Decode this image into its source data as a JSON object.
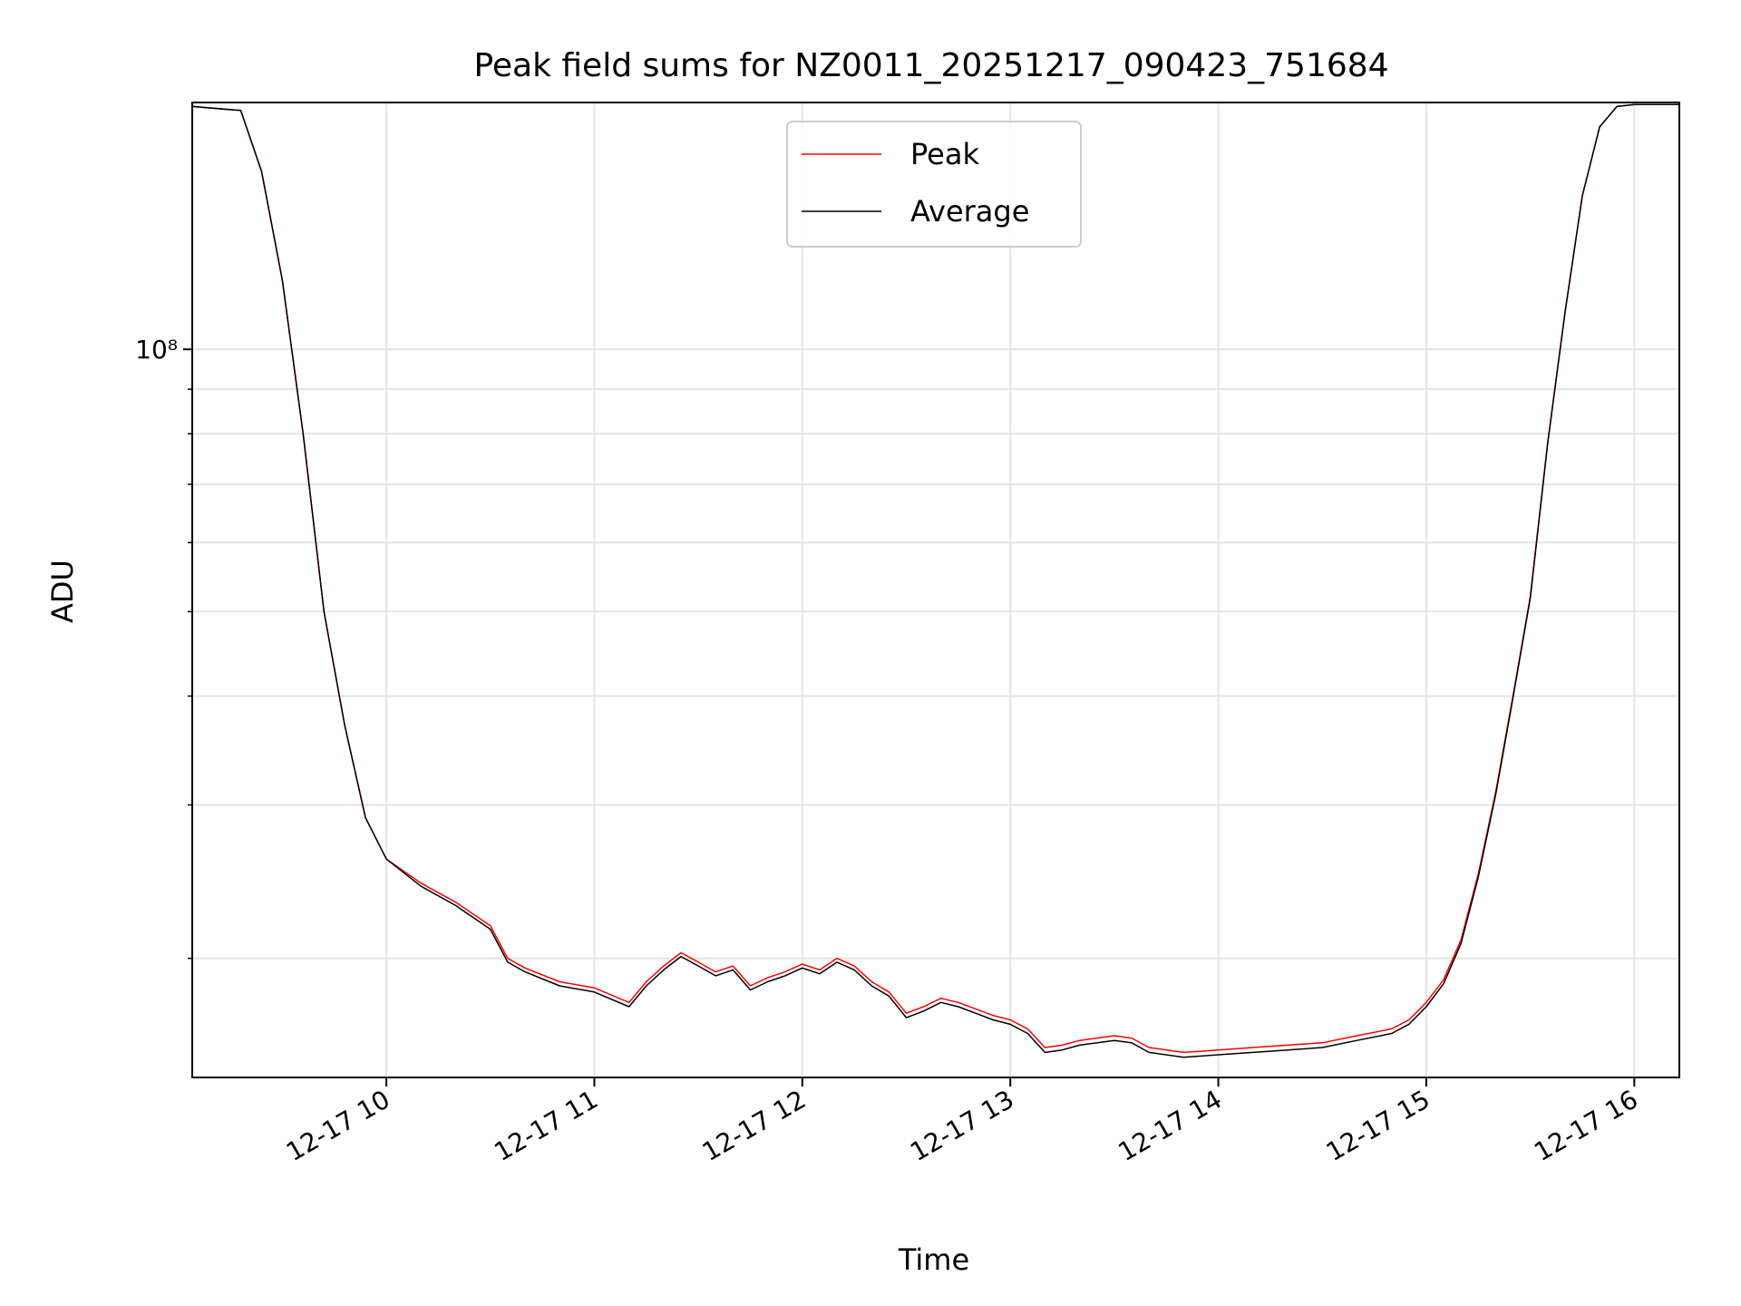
{
  "chart_data": {
    "type": "line",
    "title": "Peak field sums for NZ0011_20251217_090423_751684",
    "xlabel": "Time",
    "ylabel": "ADU",
    "y_scale": "log",
    "ylim": [
      14600000,
      192000000
    ],
    "xlim": [
      "2025-12-17 09:04",
      "2025-12-17 16:13"
    ],
    "x_tick_labels": [
      "12-17 10",
      "12-17 11",
      "12-17 12",
      "12-17 13",
      "12-17 14",
      "12-17 15",
      "12-17 16"
    ],
    "x_ticks": [
      "2025-12-17 10:00",
      "2025-12-17 11:00",
      "2025-12-17 12:00",
      "2025-12-17 13:00",
      "2025-12-17 14:00",
      "2025-12-17 15:00",
      "2025-12-17 16:00"
    ],
    "y_major_tick_label": "10⁸",
    "y_major_ticks": [
      100000000
    ],
    "y_minor_ticks": [
      20000000,
      30000000,
      40000000,
      50000000,
      60000000,
      70000000,
      80000000,
      90000000,
      200000000
    ],
    "grid": true,
    "legend_position": "top-center",
    "series": [
      {
        "name": "Peak",
        "color": "#ff0000",
        "x": [
          "2025-12-17 09:04",
          "2025-12-17 09:18",
          "2025-12-17 09:24",
          "2025-12-17 09:30",
          "2025-12-17 09:36",
          "2025-12-17 09:42",
          "2025-12-17 09:48",
          "2025-12-17 09:54",
          "2025-12-17 10:00",
          "2025-12-17 10:10",
          "2025-12-17 10:20",
          "2025-12-17 10:30",
          "2025-12-17 10:35",
          "2025-12-17 10:40",
          "2025-12-17 10:50",
          "2025-12-17 11:00",
          "2025-12-17 11:10",
          "2025-12-17 11:15",
          "2025-12-17 11:20",
          "2025-12-17 11:25",
          "2025-12-17 11:30",
          "2025-12-17 11:35",
          "2025-12-17 11:40",
          "2025-12-17 11:45",
          "2025-12-17 11:50",
          "2025-12-17 11:55",
          "2025-12-17 12:00",
          "2025-12-17 12:05",
          "2025-12-17 12:10",
          "2025-12-17 12:15",
          "2025-12-17 12:20",
          "2025-12-17 12:25",
          "2025-12-17 12:30",
          "2025-12-17 12:35",
          "2025-12-17 12:40",
          "2025-12-17 12:45",
          "2025-12-17 12:50",
          "2025-12-17 12:55",
          "2025-12-17 13:00",
          "2025-12-17 13:05",
          "2025-12-17 13:10",
          "2025-12-17 13:15",
          "2025-12-17 13:20",
          "2025-12-17 13:30",
          "2025-12-17 13:35",
          "2025-12-17 13:40",
          "2025-12-17 13:50",
          "2025-12-17 14:00",
          "2025-12-17 14:10",
          "2025-12-17 14:20",
          "2025-12-17 14:30",
          "2025-12-17 14:40",
          "2025-12-17 14:50",
          "2025-12-17 14:55",
          "2025-12-17 15:00",
          "2025-12-17 15:05",
          "2025-12-17 15:10",
          "2025-12-17 15:15",
          "2025-12-17 15:20",
          "2025-12-17 15:25",
          "2025-12-17 15:30",
          "2025-12-17 15:35",
          "2025-12-17 15:40",
          "2025-12-17 15:45",
          "2025-12-17 15:50",
          "2025-12-17 15:55",
          "2025-12-17 16:00",
          "2025-12-17 16:05",
          "2025-12-17 16:13"
        ],
        "values": [
          190000000,
          188000000,
          160000000,
          120000000,
          80000000,
          50000000,
          37000000,
          29000000,
          26000000,
          24400000,
          23200000,
          21800000,
          20000000,
          19500000,
          18800000,
          18500000,
          17800000,
          18800000,
          19600000,
          20300000,
          19800000,
          19300000,
          19600000,
          18600000,
          19000000,
          19300000,
          19700000,
          19400000,
          20000000,
          19600000,
          18800000,
          18300000,
          17300000,
          17600000,
          18000000,
          17800000,
          17500000,
          17200000,
          17000000,
          16600000,
          15800000,
          15900000,
          16100000,
          16300000,
          16200000,
          15800000,
          15600000,
          15700000,
          15800000,
          15900000,
          16000000,
          16300000,
          16600000,
          17000000,
          17800000,
          18900000,
          21000000,
          25000000,
          31000000,
          40000000,
          52000000,
          78000000,
          110000000,
          150000000,
          180000000,
          190000000,
          191000000,
          191000000,
          191000000
        ]
      },
      {
        "name": "Average",
        "color": "#000000",
        "x": [
          "2025-12-17 09:04",
          "2025-12-17 09:18",
          "2025-12-17 09:24",
          "2025-12-17 09:30",
          "2025-12-17 09:36",
          "2025-12-17 09:42",
          "2025-12-17 09:48",
          "2025-12-17 09:54",
          "2025-12-17 10:00",
          "2025-12-17 10:10",
          "2025-12-17 10:20",
          "2025-12-17 10:30",
          "2025-12-17 10:35",
          "2025-12-17 10:40",
          "2025-12-17 10:50",
          "2025-12-17 11:00",
          "2025-12-17 11:10",
          "2025-12-17 11:15",
          "2025-12-17 11:20",
          "2025-12-17 11:25",
          "2025-12-17 11:30",
          "2025-12-17 11:35",
          "2025-12-17 11:40",
          "2025-12-17 11:45",
          "2025-12-17 11:50",
          "2025-12-17 11:55",
          "2025-12-17 12:00",
          "2025-12-17 12:05",
          "2025-12-17 12:10",
          "2025-12-17 12:15",
          "2025-12-17 12:20",
          "2025-12-17 12:25",
          "2025-12-17 12:30",
          "2025-12-17 12:35",
          "2025-12-17 12:40",
          "2025-12-17 12:45",
          "2025-12-17 12:50",
          "2025-12-17 12:55",
          "2025-12-17 13:00",
          "2025-12-17 13:05",
          "2025-12-17 13:10",
          "2025-12-17 13:15",
          "2025-12-17 13:20",
          "2025-12-17 13:30",
          "2025-12-17 13:35",
          "2025-12-17 13:40",
          "2025-12-17 13:50",
          "2025-12-17 14:00",
          "2025-12-17 14:10",
          "2025-12-17 14:20",
          "2025-12-17 14:30",
          "2025-12-17 14:40",
          "2025-12-17 14:50",
          "2025-12-17 14:55",
          "2025-12-17 15:00",
          "2025-12-17 15:05",
          "2025-12-17 15:10",
          "2025-12-17 15:15",
          "2025-12-17 15:20",
          "2025-12-17 15:25",
          "2025-12-17 15:30",
          "2025-12-17 15:35",
          "2025-12-17 15:40",
          "2025-12-17 15:45",
          "2025-12-17 15:50",
          "2025-12-17 15:55",
          "2025-12-17 16:00",
          "2025-12-17 16:05",
          "2025-12-17 16:13"
        ],
        "values": [
          190000000,
          188000000,
          160000000,
          120000000,
          80000000,
          50000000,
          37000000,
          29000000,
          26000000,
          24200000,
          23000000,
          21600000,
          19800000,
          19300000,
          18600000,
          18300000,
          17600000,
          18600000,
          19400000,
          20100000,
          19600000,
          19100000,
          19400000,
          18400000,
          18800000,
          19100000,
          19500000,
          19200000,
          19800000,
          19400000,
          18600000,
          18100000,
          17100000,
          17400000,
          17800000,
          17600000,
          17300000,
          17000000,
          16800000,
          16400000,
          15600000,
          15700000,
          15900000,
          16100000,
          16000000,
          15600000,
          15400000,
          15500000,
          15600000,
          15700000,
          15800000,
          16100000,
          16400000,
          16800000,
          17600000,
          18700000,
          20800000,
          24800000,
          30800000,
          39800000,
          51800000,
          77800000,
          110000000,
          150000000,
          180000000,
          190000000,
          191000000,
          191000000,
          191000000
        ]
      }
    ]
  }
}
